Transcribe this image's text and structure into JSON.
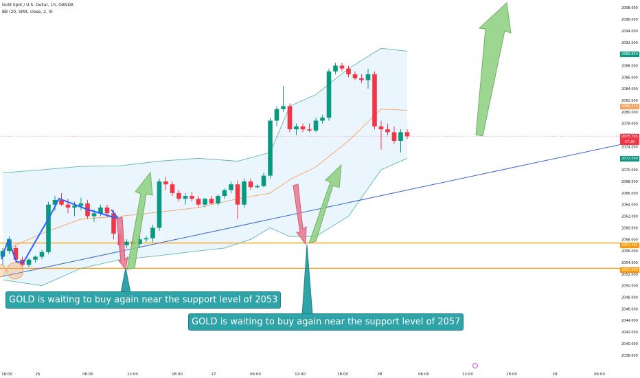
{
  "header": {
    "symbol": "Gold Spot / U.S. Dollar, 1h, OANDA",
    "indicator": "BB (20, SMA, close, 2, 0)"
  },
  "annotations": {
    "callout_1": "GOLD is waiting to buy again near the support level of 2053",
    "callout_2": "GOLD is waiting to buy again near the support level of 2057"
  },
  "price_tags": {
    "bb_upper": "2089.854",
    "bb_basis": "2080.372",
    "last_price": "2075.765",
    "countdown": "47:26",
    "bb_lower": "2072.090",
    "level_2057": "2057.361",
    "level_2053": "2053.000"
  },
  "colors": {
    "up": "#089981",
    "down": "#f23645",
    "bb_band": "#5bb8a9",
    "bb_basis": "#f7a25b",
    "bb_fill": "#e3f2fd",
    "trendline": "#3366cc",
    "support": "#ff9800",
    "green_arrow": "#8ccf7e",
    "red_arrow": "#e9788f",
    "callout_bg": "#2ea3a8"
  },
  "chart_data": {
    "type": "candlestick",
    "title": "Gold Spot / U.S. Dollar, 1h, OANDA",
    "y_axis_ticks": [
      "2038.000",
      "2040.000",
      "2042.000",
      "2044.000",
      "2046.000",
      "2048.000",
      "2050.000",
      "2052.000",
      "2054.000",
      "2056.000",
      "2058.000",
      "2060.000",
      "2062.000",
      "2064.000",
      "2066.000",
      "2068.000",
      "2070.000",
      "2072.000",
      "2074.000",
      "2076.000",
      "2078.000",
      "2080.000",
      "2082.000",
      "2084.000",
      "2086.000",
      "2088.000",
      "2090.000",
      "2092.000",
      "2094.000",
      "2096.000",
      "2098.000"
    ],
    "x_axis_ticks": [
      "18:00",
      "25",
      "06:00",
      "12:00",
      "18:00",
      "27",
      "06:00",
      "12:00",
      "18:00",
      "28",
      "06:00",
      "12:00",
      "18:00",
      "29",
      "06:00"
    ],
    "ylim": [
      2037,
      2099
    ],
    "candles": [
      {
        "o": 2055.0,
        "h": 2056.5,
        "l": 2053.5,
        "c": 2056.0
      },
      {
        "o": 2056.0,
        "h": 2058.5,
        "l": 2055.5,
        "c": 2058.0
      },
      {
        "o": 2056.5,
        "h": 2057.0,
        "l": 2054.0,
        "c": 2054.5
      },
      {
        "o": 2054.5,
        "h": 2055.0,
        "l": 2053.2,
        "c": 2053.6
      },
      {
        "o": 2053.6,
        "h": 2054.8,
        "l": 2053.2,
        "c": 2054.5
      },
      {
        "o": 2054.5,
        "h": 2055.2,
        "l": 2054.0,
        "c": 2055.0
      },
      {
        "o": 2055.0,
        "h": 2056.2,
        "l": 2054.6,
        "c": 2055.8
      },
      {
        "o": 2055.8,
        "h": 2064.5,
        "l": 2055.5,
        "c": 2064.0
      },
      {
        "o": 2064.0,
        "h": 2065.5,
        "l": 2063.0,
        "c": 2064.8
      },
      {
        "o": 2064.8,
        "h": 2066.0,
        "l": 2063.8,
        "c": 2064.0
      },
      {
        "o": 2064.0,
        "h": 2065.0,
        "l": 2062.5,
        "c": 2063.5
      },
      {
        "o": 2063.5,
        "h": 2064.5,
        "l": 2062.0,
        "c": 2063.8
      },
      {
        "o": 2063.8,
        "h": 2065.2,
        "l": 2063.0,
        "c": 2064.2
      },
      {
        "o": 2064.2,
        "h": 2064.8,
        "l": 2061.5,
        "c": 2062.0
      },
      {
        "o": 2062.0,
        "h": 2063.2,
        "l": 2061.0,
        "c": 2062.5
      },
      {
        "o": 2062.5,
        "h": 2064.0,
        "l": 2062.0,
        "c": 2063.5
      },
      {
        "o": 2063.5,
        "h": 2064.0,
        "l": 2061.8,
        "c": 2062.5
      },
      {
        "o": 2062.5,
        "h": 2063.0,
        "l": 2058.0,
        "c": 2059.0
      },
      {
        "o": 2059.0,
        "h": 2060.0,
        "l": 2055.0,
        "c": 2057.0
      },
      {
        "o": 2057.0,
        "h": 2058.0,
        "l": 2056.5,
        "c": 2057.6
      },
      {
        "o": 2057.6,
        "h": 2058.2,
        "l": 2056.8,
        "c": 2057.2
      },
      {
        "o": 2057.2,
        "h": 2059.0,
        "l": 2056.5,
        "c": 2058.0
      },
      {
        "o": 2058.0,
        "h": 2058.6,
        "l": 2057.5,
        "c": 2058.2
      },
      {
        "o": 2058.2,
        "h": 2060.5,
        "l": 2057.5,
        "c": 2060.0
      },
      {
        "o": 2060.0,
        "h": 2068.5,
        "l": 2059.5,
        "c": 2068.0
      },
      {
        "o": 2068.0,
        "h": 2068.8,
        "l": 2066.5,
        "c": 2067.5
      },
      {
        "o": 2067.5,
        "h": 2068.0,
        "l": 2065.5,
        "c": 2066.0
      },
      {
        "o": 2066.0,
        "h": 2066.5,
        "l": 2064.5,
        "c": 2065.0
      },
      {
        "o": 2065.0,
        "h": 2066.0,
        "l": 2064.0,
        "c": 2065.5
      },
      {
        "o": 2065.5,
        "h": 2066.2,
        "l": 2064.5,
        "c": 2065.0
      },
      {
        "o": 2065.0,
        "h": 2065.5,
        "l": 2063.5,
        "c": 2064.0
      },
      {
        "o": 2064.0,
        "h": 2065.2,
        "l": 2063.5,
        "c": 2065.0
      },
      {
        "o": 2065.0,
        "h": 2065.5,
        "l": 2064.0,
        "c": 2064.2
      },
      {
        "o": 2064.2,
        "h": 2065.8,
        "l": 2063.8,
        "c": 2065.5
      },
      {
        "o": 2065.5,
        "h": 2066.8,
        "l": 2065.0,
        "c": 2066.5
      },
      {
        "o": 2066.5,
        "h": 2068.0,
        "l": 2066.0,
        "c": 2067.5
      },
      {
        "o": 2067.5,
        "h": 2068.2,
        "l": 2061.5,
        "c": 2064.0
      },
      {
        "o": 2064.0,
        "h": 2068.5,
        "l": 2063.5,
        "c": 2068.0
      },
      {
        "o": 2068.0,
        "h": 2068.5,
        "l": 2066.5,
        "c": 2067.0
      },
      {
        "o": 2067.0,
        "h": 2067.5,
        "l": 2066.8,
        "c": 2067.2
      },
      {
        "o": 2067.2,
        "h": 2069.5,
        "l": 2067.0,
        "c": 2069.0
      },
      {
        "o": 2069.0,
        "h": 2079.0,
        "l": 2068.5,
        "c": 2078.5
      },
      {
        "o": 2078.5,
        "h": 2081.0,
        "l": 2077.5,
        "c": 2080.5
      },
      {
        "o": 2080.5,
        "h": 2084.5,
        "l": 2080.0,
        "c": 2081.0
      },
      {
        "o": 2081.0,
        "h": 2081.5,
        "l": 2076.5,
        "c": 2077.0
      },
      {
        "o": 2077.0,
        "h": 2078.0,
        "l": 2076.0,
        "c": 2077.5
      },
      {
        "o": 2077.5,
        "h": 2078.0,
        "l": 2076.5,
        "c": 2077.0
      },
      {
        "o": 2077.0,
        "h": 2078.0,
        "l": 2076.5,
        "c": 2076.8
      },
      {
        "o": 2076.8,
        "h": 2079.0,
        "l": 2076.5,
        "c": 2078.5
      },
      {
        "o": 2078.5,
        "h": 2079.5,
        "l": 2078.0,
        "c": 2079.0
      },
      {
        "o": 2079.0,
        "h": 2087.5,
        "l": 2078.5,
        "c": 2087.0
      },
      {
        "o": 2087.0,
        "h": 2088.5,
        "l": 2086.5,
        "c": 2088.0
      },
      {
        "o": 2088.0,
        "h": 2088.5,
        "l": 2087.0,
        "c": 2087.5
      },
      {
        "o": 2087.5,
        "h": 2088.0,
        "l": 2086.0,
        "c": 2086.5
      },
      {
        "o": 2086.5,
        "h": 2087.0,
        "l": 2085.5,
        "c": 2085.8
      },
      {
        "o": 2085.8,
        "h": 2086.5,
        "l": 2085.0,
        "c": 2085.5
      },
      {
        "o": 2085.5,
        "h": 2087.5,
        "l": 2084.0,
        "c": 2086.5
      },
      {
        "o": 2086.5,
        "h": 2087.0,
        "l": 2077.0,
        "c": 2077.5
      },
      {
        "o": 2077.5,
        "h": 2078.5,
        "l": 2073.5,
        "c": 2077.0
      },
      {
        "o": 2077.0,
        "h": 2078.0,
        "l": 2076.0,
        "c": 2076.5
      },
      {
        "o": 2076.5,
        "h": 2077.5,
        "l": 2074.5,
        "c": 2075.0
      },
      {
        "o": 2075.0,
        "h": 2077.0,
        "l": 2073.0,
        "c": 2076.5
      },
      {
        "o": 2076.5,
        "h": 2077.0,
        "l": 2075.3,
        "c": 2075.8
      }
    ],
    "bollinger": {
      "upper": [
        [
          0,
          2069.5
        ],
        [
          6,
          2070.0
        ],
        [
          12,
          2070.6
        ],
        [
          18,
          2070.7
        ],
        [
          24,
          2071.5
        ],
        [
          30,
          2072.0
        ],
        [
          36,
          2071.5
        ],
        [
          41,
          2073.0
        ],
        [
          44,
          2081.0
        ],
        [
          48,
          2083.0
        ],
        [
          53,
          2087.5
        ],
        [
          58,
          2091.0
        ],
        [
          62,
          2090.5
        ]
      ],
      "basis": [
        [
          0,
          2056.0
        ],
        [
          6,
          2059.0
        ],
        [
          12,
          2061.5
        ],
        [
          18,
          2062.0
        ],
        [
          24,
          2062.7
        ],
        [
          30,
          2063.5
        ],
        [
          36,
          2065.0
        ],
        [
          41,
          2066.0
        ],
        [
          44,
          2068.3
        ],
        [
          48,
          2070.5
        ],
        [
          53,
          2075.0
        ],
        [
          58,
          2080.5
        ],
        [
          62,
          2080.3
        ]
      ],
      "lower": [
        [
          0,
          2051.0
        ],
        [
          6,
          2050.0
        ],
        [
          12,
          2053.0
        ],
        [
          18,
          2054.5
        ],
        [
          24,
          2055.2
        ],
        [
          30,
          2056.0
        ],
        [
          34,
          2056.5
        ],
        [
          38,
          2058.0
        ],
        [
          41,
          2060.0
        ],
        [
          44,
          2058.5
        ],
        [
          48,
          2058.5
        ],
        [
          53,
          2062.0
        ],
        [
          58,
          2070.0
        ],
        [
          62,
          2072.0
        ]
      ]
    },
    "trendline": [
      [
        0,
        2051.5
      ],
      [
        74,
        2074.0
      ]
    ],
    "support_levels": [
      2057.361,
      2053.0
    ]
  }
}
